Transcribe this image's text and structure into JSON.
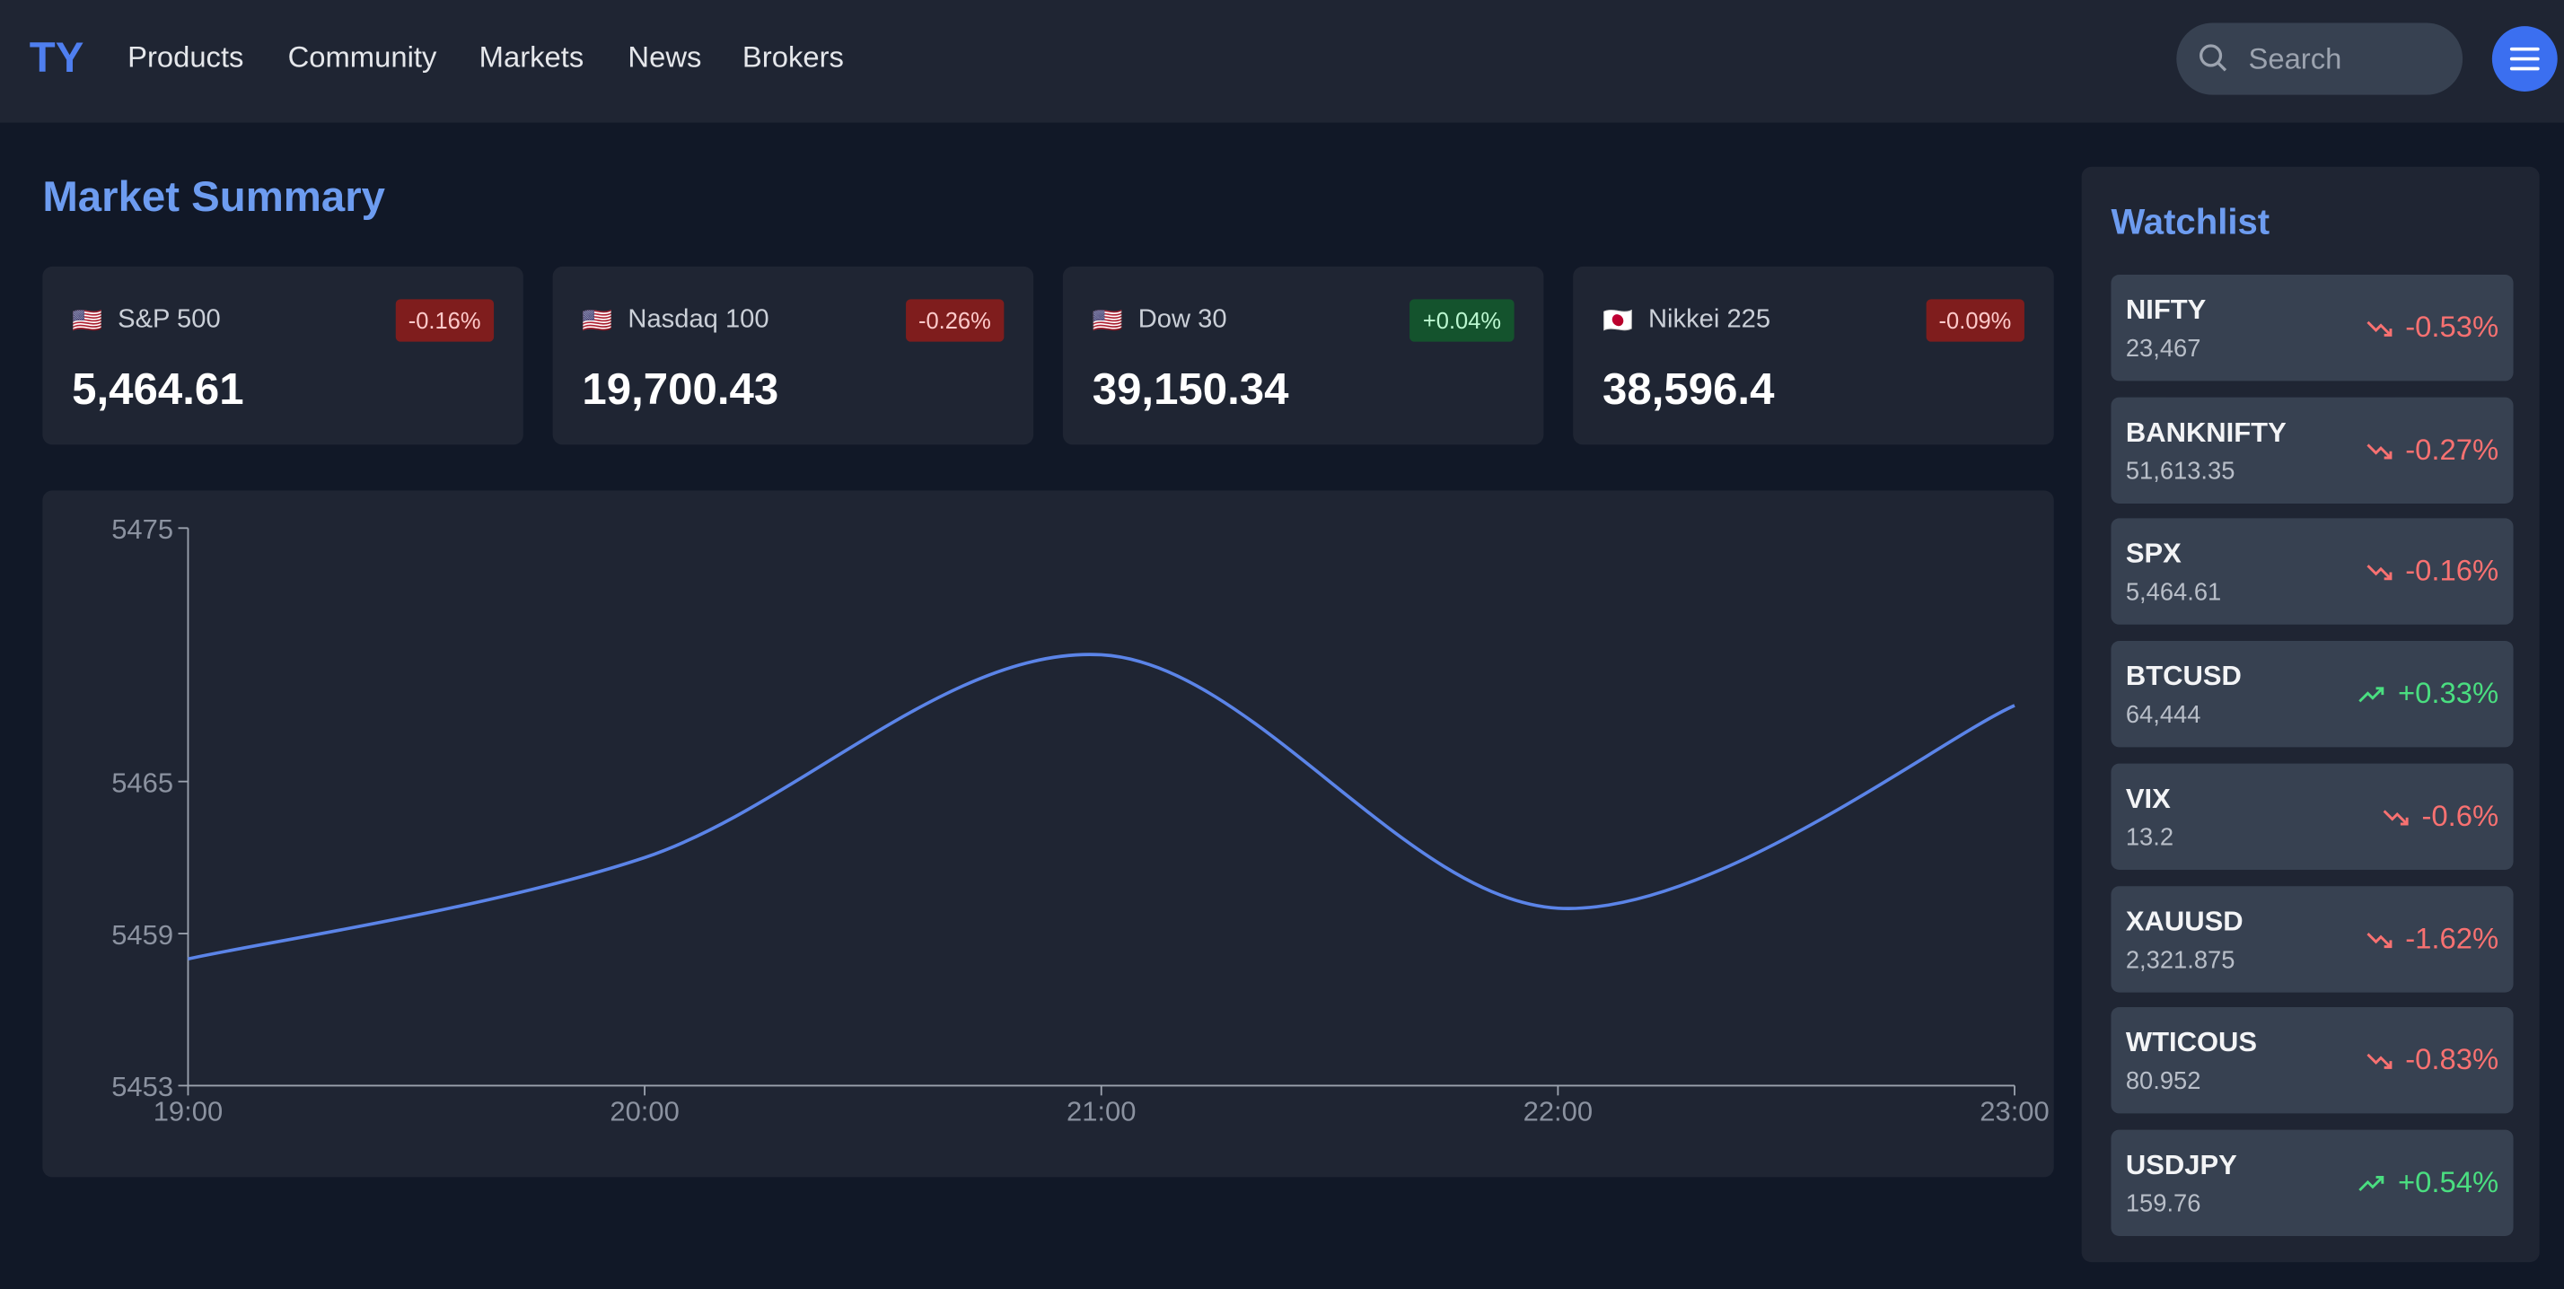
{
  "nav": {
    "logo": "TY",
    "links": [
      "Products",
      "Community",
      "Markets",
      "News",
      "Brokers"
    ],
    "search_placeholder": "Search"
  },
  "market_summary": {
    "title": "Market Summary",
    "cards": [
      {
        "flag": "🇺🇸",
        "name": "S&P 500",
        "change": "-0.16%",
        "value": "5,464.61"
      },
      {
        "flag": "🇺🇸",
        "name": "Nasdaq 100",
        "change": "-0.26%",
        "value": "19,700.43"
      },
      {
        "flag": "🇺🇸",
        "name": "Dow 30",
        "change": "+0.04%",
        "value": "39,150.34"
      },
      {
        "flag": "🇯🇵",
        "name": "Nikkei 225",
        "change": "-0.09%",
        "value": "38,596.4"
      }
    ]
  },
  "chart_data": {
    "type": "line",
    "x": [
      "19:00",
      "20:00",
      "21:00",
      "22:00",
      "23:00"
    ],
    "values": [
      5458,
      5462,
      5470,
      5460,
      5468
    ],
    "color": "#5b84e8",
    "ylim": [
      5453,
      5475
    ],
    "yticks": [
      5453,
      5459,
      5465,
      5475
    ]
  },
  "watchlist": {
    "title": "Watchlist",
    "items": [
      {
        "symbol": "NIFTY",
        "price": "23,467",
        "change": "-0.53%"
      },
      {
        "symbol": "BANKNIFTY",
        "price": "51,613.35",
        "change": "-0.27%"
      },
      {
        "symbol": "SPX",
        "price": "5,464.61",
        "change": "-0.16%"
      },
      {
        "symbol": "BTCUSD",
        "price": "64,444",
        "change": "+0.33%"
      },
      {
        "symbol": "VIX",
        "price": "13.2",
        "change": "-0.6%"
      },
      {
        "symbol": "XAUUSD",
        "price": "2,321.875",
        "change": "-1.62%"
      },
      {
        "symbol": "WTICOUS",
        "price": "80.952",
        "change": "-0.83%"
      },
      {
        "symbol": "USDJPY",
        "price": "159.76",
        "change": "+0.54%"
      }
    ]
  }
}
